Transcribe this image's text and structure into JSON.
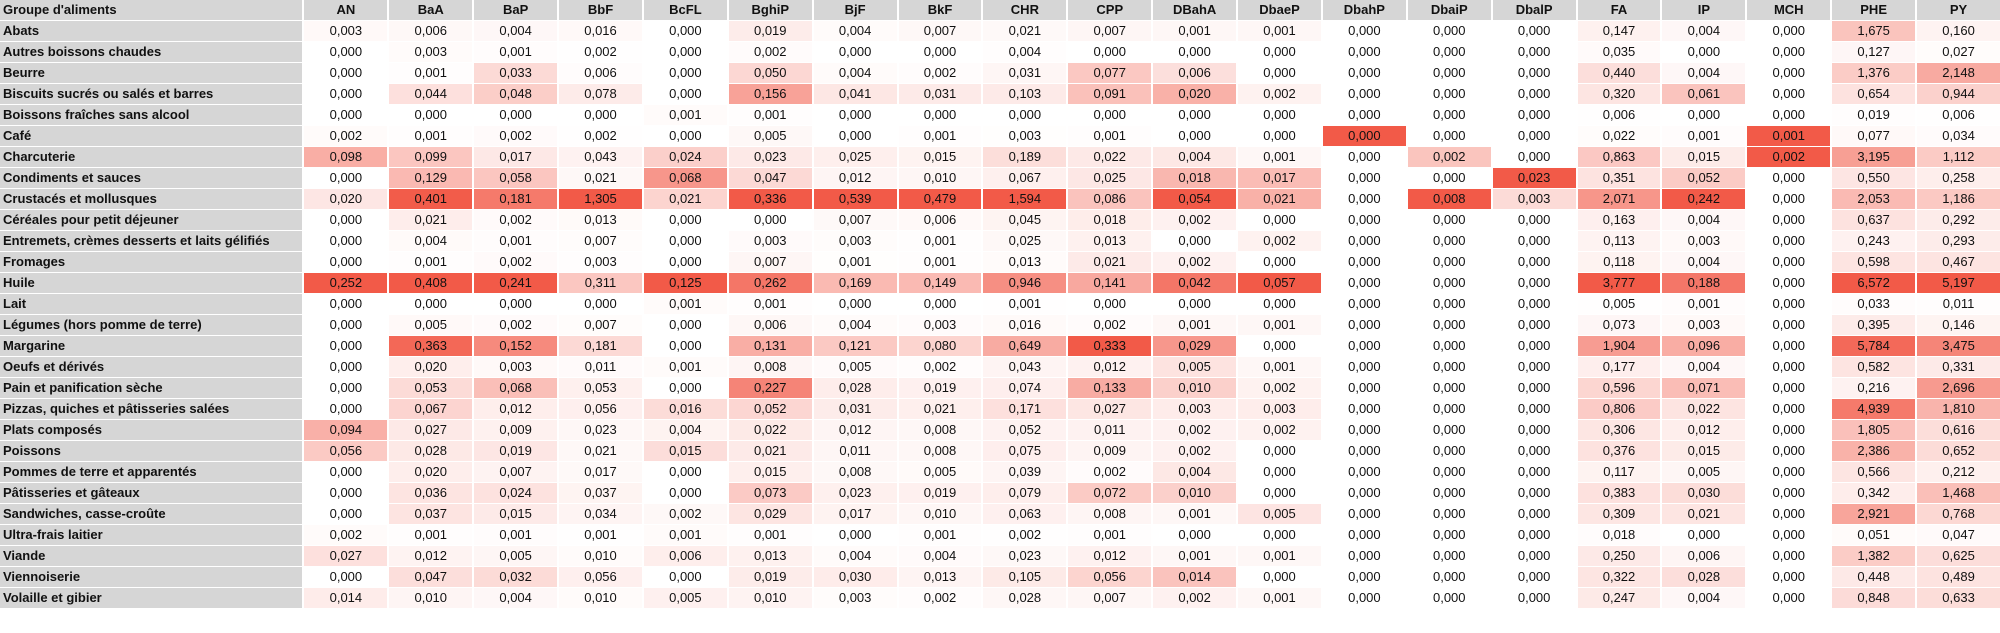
{
  "chart_data": {
    "type": "heatmap",
    "corner_label": "Groupe d'aliments",
    "columns": [
      "AN",
      "BaA",
      "BaP",
      "BbF",
      "BcFL",
      "BghiP",
      "BjF",
      "BkF",
      "CHR",
      "CPP",
      "DBahA",
      "DbaeP",
      "DbahP",
      "DbaiP",
      "DbalP",
      "FA",
      "IP",
      "MCH",
      "PHE",
      "PY"
    ],
    "rows": [
      {
        "label": "Abats",
        "values": [
          "0,003",
          "0,006",
          "0,004",
          "0,016",
          "0,000",
          "0,019",
          "0,004",
          "0,007",
          "0,021",
          "0,007",
          "0,001",
          "0,001",
          "0,000",
          "0,000",
          "0,000",
          "0,147",
          "0,004",
          "0,000",
          "1,675",
          "0,160"
        ]
      },
      {
        "label": "Autres boissons chaudes",
        "values": [
          "0,000",
          "0,003",
          "0,001",
          "0,002",
          "0,000",
          "0,002",
          "0,000",
          "0,000",
          "0,004",
          "0,000",
          "0,000",
          "0,000",
          "0,000",
          "0,000",
          "0,000",
          "0,035",
          "0,000",
          "0,000",
          "0,127",
          "0,027"
        ]
      },
      {
        "label": "Beurre",
        "values": [
          "0,000",
          "0,001",
          "0,033",
          "0,006",
          "0,000",
          "0,050",
          "0,004",
          "0,002",
          "0,031",
          "0,077",
          "0,006",
          "0,000",
          "0,000",
          "0,000",
          "0,000",
          "0,440",
          "0,004",
          "0,000",
          "1,376",
          "2,148"
        ]
      },
      {
        "label": "Biscuits sucrés ou salés et barres",
        "values": [
          "0,000",
          "0,044",
          "0,048",
          "0,078",
          "0,000",
          "0,156",
          "0,041",
          "0,031",
          "0,103",
          "0,091",
          "0,020",
          "0,002",
          "0,000",
          "0,000",
          "0,000",
          "0,320",
          "0,061",
          "0,000",
          "0,654",
          "0,944"
        ]
      },
      {
        "label": "Boissons fraîches sans alcool",
        "values": [
          "0,000",
          "0,000",
          "0,000",
          "0,000",
          "0,001",
          "0,001",
          "0,000",
          "0,000",
          "0,000",
          "0,000",
          "0,000",
          "0,000",
          "0,000",
          "0,000",
          "0,000",
          "0,006",
          "0,000",
          "0,000",
          "0,019",
          "0,006"
        ]
      },
      {
        "label": "Café",
        "values": [
          "0,002",
          "0,001",
          "0,002",
          "0,002",
          "0,000",
          "0,005",
          "0,000",
          "0,001",
          "0,003",
          "0,001",
          "0,000",
          "0,000",
          "0,000",
          "0,000",
          "0,000",
          "0,022",
          "0,001",
          "0,001",
          "0,077",
          "0,034"
        ]
      },
      {
        "label": "Charcuterie",
        "values": [
          "0,098",
          "0,099",
          "0,017",
          "0,043",
          "0,024",
          "0,023",
          "0,025",
          "0,015",
          "0,189",
          "0,022",
          "0,004",
          "0,001",
          "0,000",
          "0,002",
          "0,000",
          "0,863",
          "0,015",
          "0,002",
          "3,195",
          "1,112"
        ]
      },
      {
        "label": "Condiments et sauces",
        "values": [
          "0,000",
          "0,129",
          "0,058",
          "0,021",
          "0,068",
          "0,047",
          "0,012",
          "0,010",
          "0,067",
          "0,025",
          "0,018",
          "0,017",
          "0,000",
          "0,000",
          "0,023",
          "0,351",
          "0,052",
          "0,000",
          "0,550",
          "0,258"
        ]
      },
      {
        "label": "Crustacés et mollusques",
        "values": [
          "0,020",
          "0,401",
          "0,181",
          "1,305",
          "0,021",
          "0,336",
          "0,539",
          "0,479",
          "1,594",
          "0,086",
          "0,054",
          "0,021",
          "0,000",
          "0,008",
          "0,003",
          "2,071",
          "0,242",
          "0,000",
          "2,053",
          "1,186"
        ]
      },
      {
        "label": "Céréales pour petit déjeuner",
        "values": [
          "0,000",
          "0,021",
          "0,002",
          "0,013",
          "0,000",
          "0,000",
          "0,007",
          "0,006",
          "0,045",
          "0,018",
          "0,002",
          "0,000",
          "0,000",
          "0,000",
          "0,000",
          "0,163",
          "0,004",
          "0,000",
          "0,637",
          "0,292"
        ]
      },
      {
        "label": "Entremets, crèmes desserts et laits gélifiés",
        "values": [
          "0,000",
          "0,004",
          "0,001",
          "0,007",
          "0,000",
          "0,003",
          "0,003",
          "0,001",
          "0,025",
          "0,013",
          "0,000",
          "0,002",
          "0,000",
          "0,000",
          "0,000",
          "0,113",
          "0,003",
          "0,000",
          "0,243",
          "0,293"
        ]
      },
      {
        "label": "Fromages",
        "values": [
          "0,000",
          "0,001",
          "0,002",
          "0,003",
          "0,000",
          "0,007",
          "0,001",
          "0,001",
          "0,013",
          "0,021",
          "0,002",
          "0,000",
          "0,000",
          "0,000",
          "0,000",
          "0,118",
          "0,004",
          "0,000",
          "0,598",
          "0,467"
        ]
      },
      {
        "label": "Huile",
        "values": [
          "0,252",
          "0,408",
          "0,241",
          "0,311",
          "0,125",
          "0,262",
          "0,169",
          "0,149",
          "0,946",
          "0,141",
          "0,042",
          "0,057",
          "0,000",
          "0,000",
          "0,000",
          "3,777",
          "0,188",
          "0,000",
          "6,572",
          "5,197"
        ]
      },
      {
        "label": "Lait",
        "values": [
          "0,000",
          "0,000",
          "0,000",
          "0,000",
          "0,001",
          "0,001",
          "0,000",
          "0,000",
          "0,001",
          "0,000",
          "0,000",
          "0,000",
          "0,000",
          "0,000",
          "0,000",
          "0,005",
          "0,001",
          "0,000",
          "0,033",
          "0,011"
        ]
      },
      {
        "label": "Légumes (hors pomme de terre)",
        "values": [
          "0,000",
          "0,005",
          "0,002",
          "0,007",
          "0,000",
          "0,006",
          "0,004",
          "0,003",
          "0,016",
          "0,002",
          "0,001",
          "0,001",
          "0,000",
          "0,000",
          "0,000",
          "0,073",
          "0,003",
          "0,000",
          "0,395",
          "0,146"
        ]
      },
      {
        "label": "Margarine",
        "values": [
          "0,000",
          "0,363",
          "0,152",
          "0,181",
          "0,000",
          "0,131",
          "0,121",
          "0,080",
          "0,649",
          "0,333",
          "0,029",
          "0,000",
          "0,000",
          "0,000",
          "0,000",
          "1,904",
          "0,096",
          "0,000",
          "5,784",
          "3,475"
        ]
      },
      {
        "label": "Oeufs et dérivés",
        "values": [
          "0,000",
          "0,020",
          "0,003",
          "0,011",
          "0,001",
          "0,008",
          "0,005",
          "0,002",
          "0,043",
          "0,012",
          "0,005",
          "0,001",
          "0,000",
          "0,000",
          "0,000",
          "0,177",
          "0,004",
          "0,000",
          "0,582",
          "0,331"
        ]
      },
      {
        "label": "Pain et panification sèche",
        "values": [
          "0,000",
          "0,053",
          "0,068",
          "0,053",
          "0,000",
          "0,227",
          "0,028",
          "0,019",
          "0,074",
          "0,133",
          "0,010",
          "0,002",
          "0,000",
          "0,000",
          "0,000",
          "0,596",
          "0,071",
          "0,000",
          "0,216",
          "2,696"
        ]
      },
      {
        "label": "Pizzas, quiches et pâtisseries salées",
        "values": [
          "0,000",
          "0,067",
          "0,012",
          "0,056",
          "0,016",
          "0,052",
          "0,031",
          "0,021",
          "0,171",
          "0,027",
          "0,003",
          "0,003",
          "0,000",
          "0,000",
          "0,000",
          "0,806",
          "0,022",
          "0,000",
          "4,939",
          "1,810"
        ]
      },
      {
        "label": "Plats composés",
        "values": [
          "0,094",
          "0,027",
          "0,009",
          "0,023",
          "0,004",
          "0,022",
          "0,012",
          "0,008",
          "0,052",
          "0,011",
          "0,002",
          "0,002",
          "0,000",
          "0,000",
          "0,000",
          "0,306",
          "0,012",
          "0,000",
          "1,805",
          "0,616"
        ]
      },
      {
        "label": "Poissons",
        "values": [
          "0,056",
          "0,028",
          "0,019",
          "0,021",
          "0,015",
          "0,021",
          "0,011",
          "0,008",
          "0,075",
          "0,009",
          "0,002",
          "0,000",
          "0,000",
          "0,000",
          "0,000",
          "0,376",
          "0,015",
          "0,000",
          "2,386",
          "0,652"
        ]
      },
      {
        "label": "Pommes de terre et apparentés",
        "values": [
          "0,000",
          "0,020",
          "0,007",
          "0,017",
          "0,000",
          "0,015",
          "0,008",
          "0,005",
          "0,039",
          "0,002",
          "0,004",
          "0,000",
          "0,000",
          "0,000",
          "0,000",
          "0,117",
          "0,005",
          "0,000",
          "0,566",
          "0,212"
        ]
      },
      {
        "label": "Pâtisseries et gâteaux",
        "values": [
          "0,000",
          "0,036",
          "0,024",
          "0,037",
          "0,000",
          "0,073",
          "0,023",
          "0,019",
          "0,079",
          "0,072",
          "0,010",
          "0,000",
          "0,000",
          "0,000",
          "0,000",
          "0,383",
          "0,030",
          "0,000",
          "0,342",
          "1,468"
        ]
      },
      {
        "label": "Sandwiches, casse-croûte",
        "values": [
          "0,000",
          "0,037",
          "0,015",
          "0,034",
          "0,002",
          "0,029",
          "0,017",
          "0,010",
          "0,063",
          "0,008",
          "0,001",
          "0,005",
          "0,000",
          "0,000",
          "0,000",
          "0,309",
          "0,021",
          "0,000",
          "2,921",
          "0,768"
        ]
      },
      {
        "label": "Ultra-frais laitier",
        "values": [
          "0,002",
          "0,001",
          "0,001",
          "0,001",
          "0,001",
          "0,001",
          "0,000",
          "0,001",
          "0,002",
          "0,001",
          "0,000",
          "0,000",
          "0,000",
          "0,000",
          "0,000",
          "0,018",
          "0,000",
          "0,000",
          "0,051",
          "0,047"
        ]
      },
      {
        "label": "Viande",
        "values": [
          "0,027",
          "0,012",
          "0,005",
          "0,010",
          "0,006",
          "0,013",
          "0,004",
          "0,004",
          "0,023",
          "0,012",
          "0,001",
          "0,001",
          "0,000",
          "0,000",
          "0,000",
          "0,250",
          "0,006",
          "0,000",
          "1,382",
          "0,625"
        ]
      },
      {
        "label": "Viennoiserie",
        "values": [
          "0,000",
          "0,047",
          "0,032",
          "0,056",
          "0,000",
          "0,019",
          "0,030",
          "0,013",
          "0,105",
          "0,056",
          "0,014",
          "0,000",
          "0,000",
          "0,000",
          "0,000",
          "0,322",
          "0,028",
          "0,000",
          "0,448",
          "0,489"
        ]
      },
      {
        "label": "Volaille et gibier",
        "values": [
          "0,014",
          "0,010",
          "0,004",
          "0,010",
          "0,005",
          "0,010",
          "0,003",
          "0,002",
          "0,028",
          "0,007",
          "0,002",
          "0,001",
          "0,000",
          "0,000",
          "0,000",
          "0,247",
          "0,004",
          "0,000",
          "0,848",
          "0,633"
        ]
      }
    ],
    "color_scale": {
      "low": "#ffffff",
      "high": "#f25a48",
      "per_column": true
    },
    "special_cells": [
      {
        "row": "Café",
        "column": "DbahP",
        "color": "#f25a48"
      },
      {
        "row": "Café",
        "column": "MCH",
        "color": "#f25a48"
      },
      {
        "row": "Charcuterie",
        "column": "MCH",
        "color": "#f25a48"
      }
    ]
  }
}
